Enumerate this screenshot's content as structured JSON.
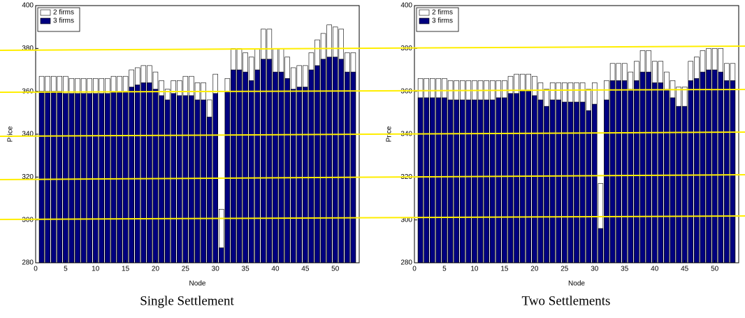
{
  "chart_data": [
    {
      "type": "bar",
      "title": "Single Settlement",
      "xlabel": "Node",
      "ylabel": "Price",
      "x": [
        1,
        2,
        3,
        4,
        5,
        6,
        7,
        8,
        9,
        10,
        11,
        12,
        13,
        14,
        15,
        16,
        17,
        18,
        19,
        20,
        21,
        22,
        23,
        24,
        25,
        26,
        27,
        28,
        29,
        30,
        31,
        32,
        33,
        34,
        35,
        36,
        37,
        38,
        39,
        40,
        41,
        42,
        43,
        44,
        45,
        46,
        47,
        48,
        49,
        50,
        51,
        52,
        53
      ],
      "series": [
        {
          "name": "2 firms",
          "color": "#ffffff",
          "values": [
            367,
            367,
            367,
            367,
            367,
            366,
            366,
            366,
            366,
            366,
            366,
            366,
            367,
            367,
            367,
            370,
            371,
            372,
            372,
            369,
            365,
            361,
            365,
            365,
            367,
            367,
            364,
            364,
            356,
            368,
            305,
            366,
            380,
            380,
            378,
            376,
            380,
            389,
            389,
            380,
            380,
            376,
            371,
            372,
            372,
            378,
            384,
            387,
            391,
            390,
            389,
            378,
            378
          ]
        },
        {
          "name": "3 firms",
          "color": "#000080",
          "values": [
            360,
            360,
            360,
            360,
            359,
            359,
            359,
            359,
            359,
            359,
            359,
            359,
            360,
            360,
            360,
            362,
            363,
            364,
            364,
            361,
            358,
            356,
            359,
            358,
            358,
            358,
            356,
            356,
            348,
            359,
            287,
            360,
            370,
            370,
            369,
            365,
            370,
            375,
            375,
            369,
            369,
            366,
            361,
            362,
            362,
            370,
            372,
            375,
            376,
            376,
            375,
            369,
            369
          ]
        }
      ],
      "xlim": [
        0,
        54
      ],
      "xticks": [
        0,
        5,
        10,
        15,
        20,
        25,
        30,
        35,
        40,
        45,
        50
      ],
      "ylim": [
        280,
        400
      ],
      "yticks": [
        280,
        300,
        320,
        340,
        360,
        380,
        400
      ],
      "legend": "upper left"
    },
    {
      "type": "bar",
      "title": "Two Settlements",
      "xlabel": "Node",
      "ylabel": "Price",
      "x": [
        1,
        2,
        3,
        4,
        5,
        6,
        7,
        8,
        9,
        10,
        11,
        12,
        13,
        14,
        15,
        16,
        17,
        18,
        19,
        20,
        21,
        22,
        23,
        24,
        25,
        26,
        27,
        28,
        29,
        30,
        31,
        32,
        33,
        34,
        35,
        36,
        37,
        38,
        39,
        40,
        41,
        42,
        43,
        44,
        45,
        46,
        47,
        48,
        49,
        50,
        51,
        52,
        53
      ],
      "series": [
        {
          "name": "2 firms",
          "color": "#ffffff",
          "values": [
            366,
            366,
            366,
            366,
            366,
            365,
            365,
            365,
            365,
            365,
            365,
            365,
            365,
            365,
            365,
            367,
            368,
            368,
            368,
            367,
            364,
            361,
            364,
            364,
            364,
            364,
            364,
            364,
            361,
            364,
            317,
            365,
            373,
            373,
            373,
            369,
            374,
            379,
            379,
            374,
            374,
            369,
            365,
            362,
            362,
            374,
            376,
            379,
            380,
            380,
            380,
            373,
            373
          ]
        },
        {
          "name": "3 firms",
          "color": "#000080",
          "values": [
            357,
            357,
            357,
            357,
            357,
            356,
            356,
            356,
            356,
            356,
            356,
            356,
            356,
            357,
            357,
            359,
            359,
            360,
            360,
            358,
            356,
            353,
            356,
            356,
            355,
            355,
            355,
            355,
            351,
            354,
            296,
            356,
            365,
            365,
            365,
            361,
            365,
            369,
            369,
            364,
            364,
            361,
            357,
            353,
            353,
            365,
            366,
            369,
            370,
            370,
            369,
            365,
            365
          ]
        }
      ],
      "xlim": [
        0,
        54
      ],
      "xticks": [
        0,
        5,
        10,
        15,
        20,
        25,
        30,
        35,
        40,
        45,
        50
      ],
      "ylim": [
        280,
        400
      ],
      "yticks": [
        280,
        300,
        320,
        340,
        360,
        380,
        400
      ],
      "legend": "upper left"
    }
  ]
}
